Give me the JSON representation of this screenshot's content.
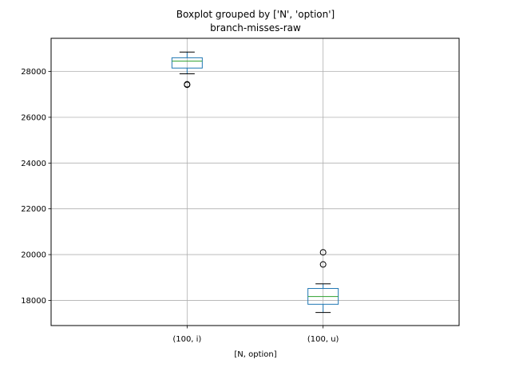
{
  "chart_data": {
    "type": "boxplot",
    "suptitle": "Boxplot grouped by ['N', 'option']",
    "title": "branch-misses-raw",
    "xlabel": "[N, option]",
    "ylabel": "",
    "ylim": [
      16900,
      29450
    ],
    "yticks": [
      18000,
      20000,
      22000,
      24000,
      26000,
      28000
    ],
    "grid": true,
    "colors": {
      "box": "#1f77b4",
      "median": "#2ca02c",
      "whisker": "#000000",
      "grid": "#b0b0b0"
    },
    "categories": [
      "(100, i)",
      "(100, u)"
    ],
    "boxes": [
      {
        "label": "(100, i)",
        "whislo": 27900,
        "q1": 28150,
        "med": 28450,
        "q3": 28600,
        "whishi": 28850,
        "fliers": [
          27420,
          27440
        ]
      },
      {
        "label": "(100, u)",
        "whislo": 17470,
        "q1": 17830,
        "med": 18170,
        "q3": 18520,
        "whishi": 18720,
        "fliers": [
          19570,
          20100
        ]
      }
    ]
  }
}
